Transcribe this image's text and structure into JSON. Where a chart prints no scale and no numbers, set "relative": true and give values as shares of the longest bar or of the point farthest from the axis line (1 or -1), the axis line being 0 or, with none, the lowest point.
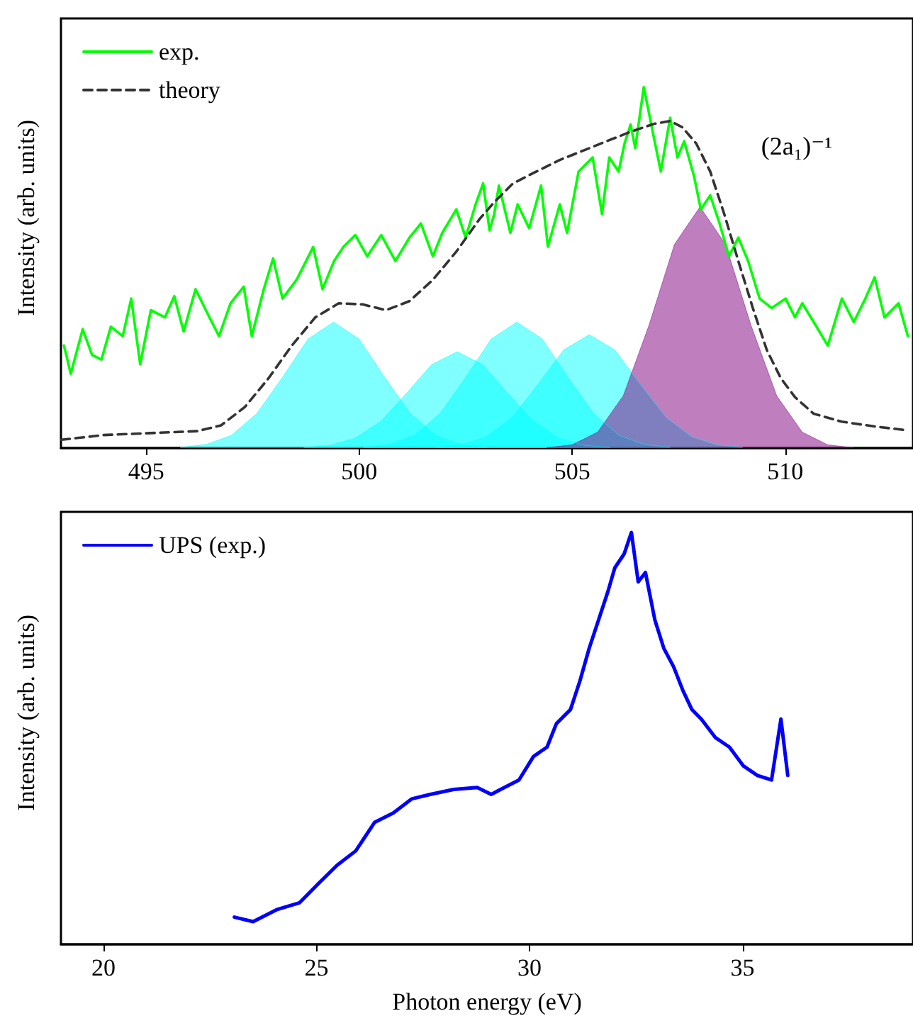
{
  "chart_data": [
    {
      "type": "line",
      "ylabel": "Intensity (arb. units)",
      "relative": true,
      "xlim": [
        493,
        513
      ],
      "xticks": [
        495,
        500,
        505,
        510
      ],
      "tick_labels": "x",
      "legend": "top left",
      "marker": "none",
      "annotations": [
        "(2a₁)⁻¹"
      ],
      "series": [
        {
          "type": "area",
          "color": "#00ffff",
          "x": [
            495.8,
            496.4,
            497.0,
            497.6,
            498.2,
            498.8,
            499.4,
            500.0,
            500.6,
            501.2,
            501.8,
            502.4,
            503.0
          ],
          "values": [
            0.002,
            0.01,
            0.035,
            0.096,
            0.196,
            0.302,
            0.349,
            0.302,
            0.196,
            0.096,
            0.035,
            0.01,
            0.002
          ]
        },
        {
          "type": "area",
          "color": "#00ffff",
          "x": [
            498.7,
            499.3,
            499.9,
            500.5,
            501.1,
            501.7,
            502.3,
            502.9,
            503.5,
            504.1,
            504.7,
            505.3,
            505.9
          ],
          "values": [
            0.002,
            0.007,
            0.027,
            0.073,
            0.15,
            0.231,
            0.267,
            0.231,
            0.15,
            0.073,
            0.027,
            0.007,
            0.002
          ]
        },
        {
          "type": "area",
          "color": "#00ffff",
          "x": [
            500.1,
            500.7,
            501.3,
            501.9,
            502.5,
            503.1,
            503.7,
            504.3,
            504.9,
            505.5,
            506.1,
            506.7,
            507.3
          ],
          "values": [
            0.002,
            0.01,
            0.035,
            0.096,
            0.196,
            0.302,
            0.349,
            0.302,
            0.196,
            0.096,
            0.035,
            0.01,
            0.002
          ]
        },
        {
          "type": "area",
          "color": "#00ffff",
          "x": [
            501.8,
            502.4,
            503.0,
            503.6,
            504.2,
            504.8,
            505.4,
            506.0,
            506.6,
            507.2,
            507.8,
            508.4,
            509.0
          ],
          "values": [
            0.002,
            0.009,
            0.032,
            0.086,
            0.177,
            0.272,
            0.314,
            0.272,
            0.177,
            0.086,
            0.032,
            0.009,
            0.002
          ]
        },
        {
          "type": "area",
          "color": "#800080",
          "x": [
            504.4,
            505.0,
            505.6,
            506.2,
            506.8,
            507.4,
            508.0,
            508.6,
            509.2,
            509.8,
            510.4,
            511.0,
            511.6
          ],
          "values": [
            0.001,
            0.009,
            0.044,
            0.145,
            0.339,
            0.564,
            0.668,
            0.564,
            0.339,
            0.145,
            0.044,
            0.009,
            0.001
          ]
        },
        {
          "name": "exp.",
          "color": "#00ff00",
          "line_style": "solid",
          "x": [
            493.07,
            493.23,
            493.51,
            493.73,
            493.95,
            494.17,
            494.45,
            494.65,
            494.86,
            495.11,
            495.44,
            495.66,
            495.88,
            496.16,
            496.43,
            496.71,
            496.98,
            497.29,
            497.48,
            497.76,
            497.98,
            498.2,
            498.53,
            498.92,
            499.14,
            499.41,
            499.63,
            499.91,
            500.19,
            500.52,
            500.85,
            501.18,
            501.45,
            501.73,
            501.95,
            502.28,
            502.5,
            502.73,
            502.91,
            503.06,
            503.17,
            503.28,
            503.55,
            503.72,
            503.99,
            504.27,
            504.43,
            504.71,
            504.88,
            505.15,
            505.48,
            505.7,
            505.87,
            506.09,
            506.23,
            506.37,
            506.48,
            506.68,
            506.9,
            507.08,
            507.3,
            507.47,
            507.63,
            507.86,
            508.02,
            508.24,
            508.46,
            508.68,
            508.9,
            509.13,
            509.4,
            509.68,
            510.01,
            510.23,
            510.4,
            510.67,
            511.0,
            511.33,
            511.61,
            511.88,
            512.1,
            512.33,
            512.66,
            512.88
          ],
          "values": [
            0.284,
            0.206,
            0.329,
            0.258,
            0.245,
            0.336,
            0.31,
            0.414,
            0.232,
            0.382,
            0.362,
            0.421,
            0.323,
            0.44,
            0.375,
            0.31,
            0.401,
            0.447,
            0.31,
            0.44,
            0.525,
            0.414,
            0.466,
            0.557,
            0.44,
            0.518,
            0.557,
            0.59,
            0.531,
            0.59,
            0.518,
            0.583,
            0.622,
            0.531,
            0.596,
            0.661,
            0.583,
            0.674,
            0.733,
            0.603,
            0.648,
            0.727,
            0.596,
            0.675,
            0.609,
            0.727,
            0.558,
            0.675,
            0.596,
            0.766,
            0.805,
            0.648,
            0.805,
            0.766,
            0.844,
            0.896,
            0.831,
            1.0,
            0.87,
            0.766,
            0.915,
            0.805,
            0.85,
            0.753,
            0.661,
            0.7,
            0.622,
            0.531,
            0.583,
            0.518,
            0.414,
            0.388,
            0.414,
            0.362,
            0.401,
            0.349,
            0.284,
            0.414,
            0.349,
            0.414,
            0.473,
            0.362,
            0.401,
            0.31
          ]
        },
        {
          "name": "theory",
          "color": "#333333",
          "line_style": "dashed",
          "x": [
            493.01,
            494.0,
            496.21,
            496.76,
            497.32,
            497.87,
            498.42,
            498.97,
            499.52,
            500.08,
            500.63,
            501.18,
            501.73,
            502.28,
            502.83,
            503.17,
            503.61,
            504.16,
            504.71,
            505.26,
            505.81,
            506.37,
            506.92,
            507.3,
            507.58,
            507.91,
            508.24,
            508.57,
            508.9,
            509.24,
            509.57,
            509.9,
            510.23,
            510.67,
            511.33,
            512.1,
            512.88
          ],
          "values": [
            0.023,
            0.036,
            0.047,
            0.063,
            0.114,
            0.193,
            0.284,
            0.362,
            0.401,
            0.398,
            0.382,
            0.407,
            0.466,
            0.544,
            0.635,
            0.681,
            0.733,
            0.766,
            0.798,
            0.824,
            0.85,
            0.876,
            0.898,
            0.906,
            0.889,
            0.844,
            0.766,
            0.648,
            0.518,
            0.388,
            0.271,
            0.193,
            0.141,
            0.095,
            0.073,
            0.06,
            0.049
          ]
        }
      ]
    },
    {
      "type": "line",
      "xlabel": "Photon energy (eV)",
      "ylabel": "Intensity (arb. units)",
      "relative": true,
      "xlim": [
        19,
        39
      ],
      "xticks": [
        20,
        25,
        30,
        35
      ],
      "tick_labels": "x",
      "legend": "top left",
      "marker": "none",
      "series": [
        {
          "name": "UPS (exp.)",
          "color": "#0000ff",
          "line_style": "solid",
          "x": [
            23.07,
            23.51,
            24.06,
            24.6,
            25.04,
            25.48,
            25.92,
            26.36,
            26.8,
            27.23,
            27.67,
            28.22,
            28.77,
            29.1,
            29.32,
            29.75,
            30.09,
            30.41,
            30.63,
            30.96,
            31.18,
            31.4,
            31.62,
            31.84,
            32.0,
            32.22,
            32.39,
            32.55,
            32.72,
            32.94,
            33.15,
            33.38,
            33.6,
            33.81,
            34.03,
            34.36,
            34.69,
            35.02,
            35.35,
            35.68,
            35.9,
            36.06
          ],
          "values": [
            0.066,
            0.055,
            0.084,
            0.101,
            0.147,
            0.192,
            0.227,
            0.296,
            0.319,
            0.353,
            0.364,
            0.376,
            0.381,
            0.364,
            0.376,
            0.399,
            0.456,
            0.479,
            0.536,
            0.57,
            0.639,
            0.719,
            0.788,
            0.857,
            0.914,
            0.948,
            1.0,
            0.88,
            0.903,
            0.788,
            0.719,
            0.674,
            0.616,
            0.57,
            0.547,
            0.502,
            0.479,
            0.433,
            0.41,
            0.399,
            0.547,
            0.41
          ]
        }
      ]
    }
  ]
}
